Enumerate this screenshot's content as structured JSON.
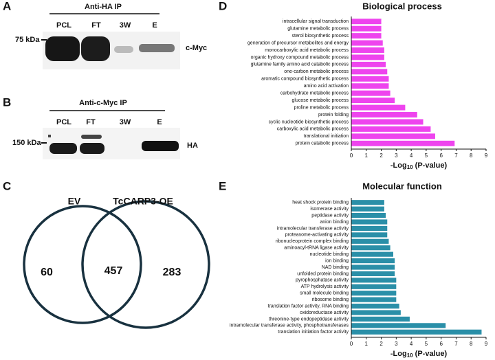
{
  "panels": {
    "a": "A",
    "b": "B",
    "c": "C",
    "d": "D",
    "e": "E"
  },
  "blot_a": {
    "title": "Anti-HA IP",
    "lanes": [
      "PCL",
      "FT",
      "3W",
      "E"
    ],
    "marker": "75 kDa",
    "target": "c-Myc"
  },
  "blot_b": {
    "title": "Anti-c-Myc IP",
    "lanes": [
      "PCL",
      "FT",
      "3W",
      "E"
    ],
    "marker": "150 kDa",
    "target": "HA"
  },
  "venn": {
    "sets": [
      "EV",
      "TcCARP3-OE"
    ],
    "counts": [
      "60",
      "457",
      "283"
    ]
  },
  "chart_data": [
    {
      "type": "barh",
      "title": "Biological process",
      "color": "#ee44ee",
      "x_label": {
        "main": "-Log",
        "sub": "10",
        "rest": " (P-value)"
      },
      "categories": [
        "intracellular signal transduction",
        "glutamine metabolic process",
        "sterol biosynthetic process",
        "generation of precursor metabolites and energy",
        "monocarboxylic acid metabolic process",
        "organic hydroxy compound metabolic process",
        "glutamine family amino acid catabolic process",
        "one-carbon metabolic process",
        "aromatic compound biosynthetic process",
        "amino acid activation",
        "carbohydrate metabolic process",
        "glucose metabolic process",
        "proline metabolic process",
        "protein folding",
        "cyclic nucleotide biosynthetic process",
        "carboxylic acid metabolic process",
        "translational initiation",
        "protein catabolic process"
      ],
      "values": [
        2.0,
        2.0,
        2.0,
        2.1,
        2.2,
        2.2,
        2.3,
        2.4,
        2.5,
        2.5,
        2.6,
        2.9,
        3.6,
        4.4,
        4.8,
        5.3,
        5.6,
        6.9
      ],
      "xlim": [
        0,
        9
      ],
      "xticks": [
        0,
        1,
        2,
        3,
        4,
        5,
        6,
        7,
        8,
        9
      ]
    },
    {
      "type": "barh",
      "title": "Molecular function",
      "color": "#2a8fa8",
      "x_label": {
        "main": "-Log",
        "sub": "10",
        "rest": " (P-value)"
      },
      "categories": [
        "heat shock protein binding",
        "isomerase activity",
        "peptidase activity",
        "anion binding",
        "intramolecular transferase activity",
        "proteasome-activating activity",
        "ribonucleoprotein complex binding",
        "aminoacyl-tRNA ligase activity",
        "nucleotide binding",
        "ion binding",
        "NAD binding",
        "unfolded protein binding",
        "pyrophosphatase activity",
        "ATP hydrolysis activity",
        "small molecule binding",
        "ribosome binding",
        "translation factor activity, RNA binding",
        "oxidoreductase activity",
        "threonine-type endopeptidase activity",
        "intramolecular transferase activity, phosphotransferases",
        "translation initiation factor activity"
      ],
      "values": [
        2.2,
        2.2,
        2.3,
        2.4,
        2.4,
        2.4,
        2.5,
        2.6,
        2.8,
        2.9,
        2.9,
        2.9,
        3.0,
        3.0,
        3.0,
        3.0,
        3.2,
        3.3,
        3.9,
        6.3,
        8.7
      ],
      "xlim": [
        0,
        9
      ],
      "xticks": [
        0,
        1,
        2,
        3,
        4,
        5,
        6,
        7,
        8,
        9
      ]
    }
  ]
}
